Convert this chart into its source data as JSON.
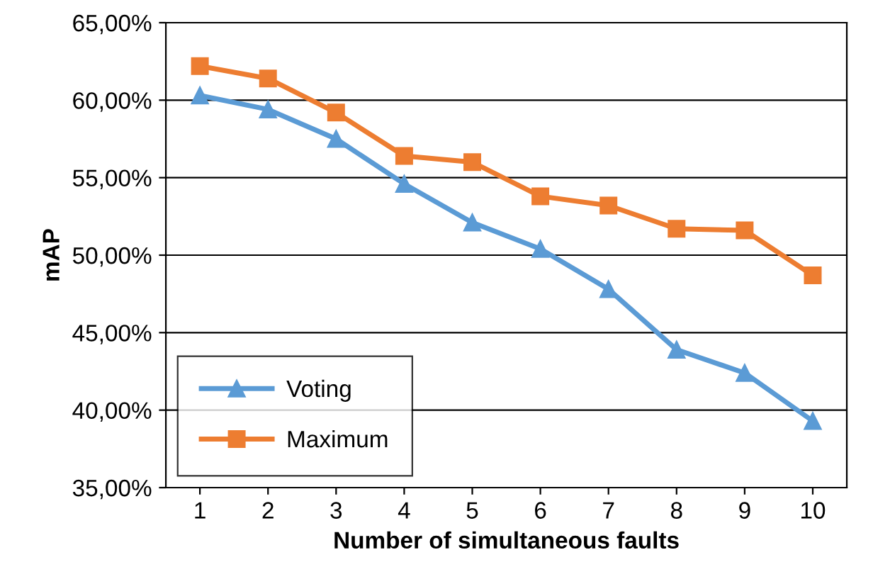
{
  "chart_data": {
    "type": "line",
    "xlabel": "Number of simultaneous faults",
    "ylabel": "mAP",
    "categories": [
      "1",
      "2",
      "3",
      "4",
      "5",
      "6",
      "7",
      "8",
      "9",
      "10"
    ],
    "series": [
      {
        "name": "Voting",
        "color": "#5b9bd5",
        "marker": "triangle",
        "values": [
          60.3,
          59.4,
          57.5,
          54.6,
          52.1,
          50.4,
          47.8,
          43.9,
          42.4,
          39.3
        ]
      },
      {
        "name": "Maximum",
        "color": "#ed7d31",
        "marker": "square",
        "values": [
          62.2,
          61.4,
          59.2,
          56.4,
          56.0,
          53.8,
          53.2,
          51.7,
          51.6,
          48.7
        ]
      }
    ],
    "ylim": [
      35,
      65
    ],
    "yticks": [
      {
        "value": 35,
        "label": "35,00%"
      },
      {
        "value": 40,
        "label": "40,00%"
      },
      {
        "value": 45,
        "label": "45,00%"
      },
      {
        "value": 50,
        "label": "50,00%"
      },
      {
        "value": 55,
        "label": "55,00%"
      },
      {
        "value": 60,
        "label": "60,00%"
      },
      {
        "value": 65,
        "label": "65,00%"
      }
    ],
    "grid": "y",
    "legend": "bottom left",
    "line_style": "solid"
  }
}
